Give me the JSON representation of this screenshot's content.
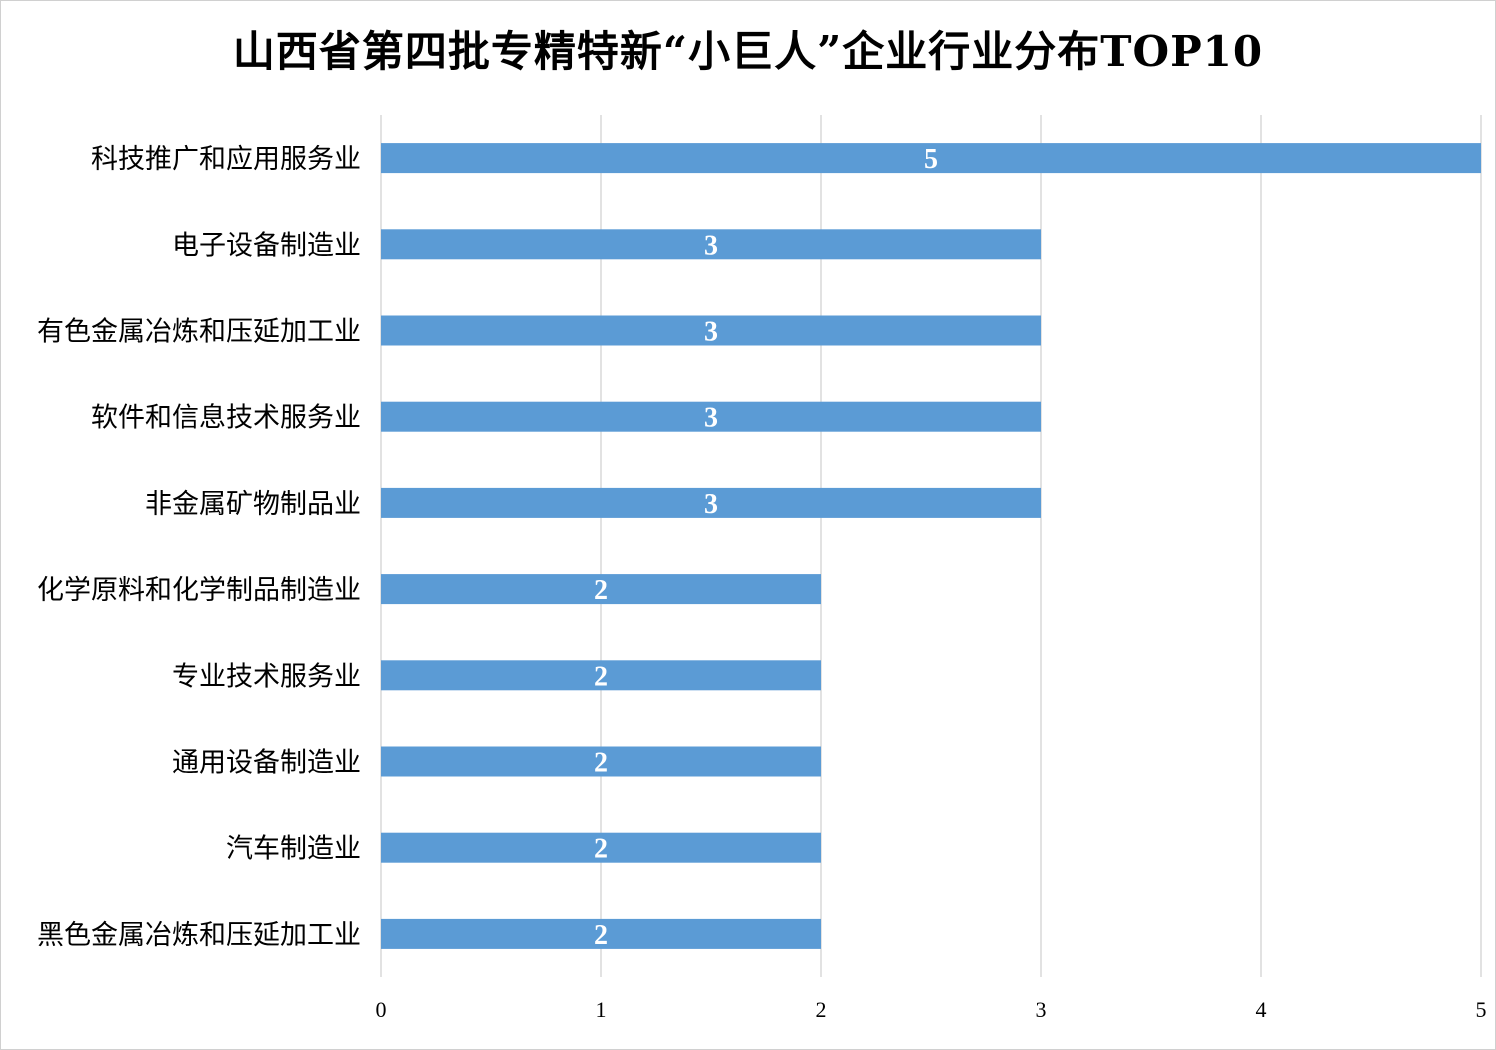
{
  "chart_data": {
    "type": "bar",
    "orientation": "horizontal",
    "title": "山西省第四批专精特新“小巨人”企业行业分布TOP10",
    "categories": [
      "科技推广和应用服务业",
      "电子设备制造业",
      "有色金属冶炼和压延加工业",
      "软件和信息技术服务业",
      "非金属矿物制品业",
      "化学原料和化学制品制造业",
      "专业技术服务业",
      "通用设备制造业",
      "汽车制造业",
      "黑色金属冶炼和压延加工业"
    ],
    "values": [
      5,
      3,
      3,
      3,
      3,
      2,
      2,
      2,
      2,
      2
    ],
    "xlim": [
      0,
      5
    ],
    "xticks": [
      "0",
      "1",
      "2",
      "3",
      "4",
      "5"
    ],
    "grid": true,
    "legend": "none",
    "bar_color": "#5b9bd5",
    "grid_color": "#d9d9d9",
    "label_color": "#ffffff"
  }
}
